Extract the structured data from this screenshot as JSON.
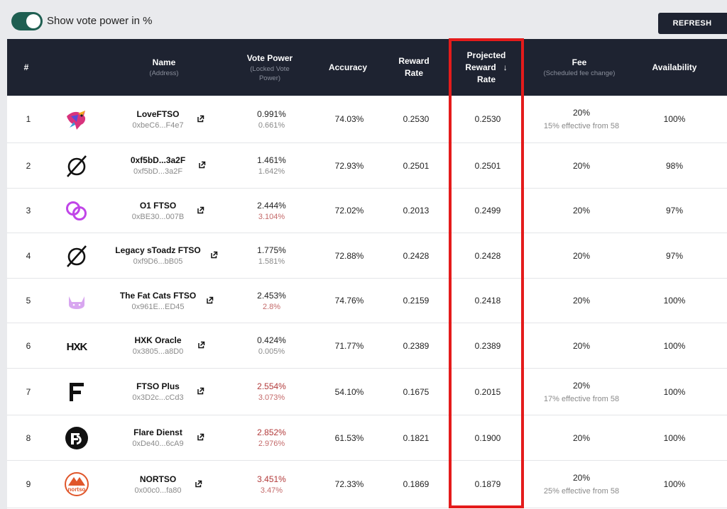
{
  "toolbar": {
    "toggle_label": "Show vote power in %",
    "refresh_label": "REFRESH"
  },
  "header": {
    "num": "#",
    "name": "Name",
    "name_sub": "(Address)",
    "vote_power": "Vote Power",
    "vote_power_sub_1": "(Locked Vote",
    "vote_power_sub_2": "Power)",
    "accuracy": "Accuracy",
    "reward_rate_1": "Reward",
    "reward_rate_2": "Rate",
    "projected_1": "Projected",
    "projected_2": "Reward",
    "projected_3": "Rate",
    "sort_arrow": "↓",
    "fee": "Fee",
    "fee_sub": "(Scheduled fee change)",
    "availability": "Availability"
  },
  "rows": [
    {
      "num": "1",
      "logo": "lovebird-logo",
      "name": "LoveFTSO",
      "address": "0xbeC6...F4e7",
      "vp": "0.991%",
      "vp_locked": "0.661%",
      "vp_red": false,
      "accuracy": "74.03%",
      "reward": "0.2530",
      "projected": "0.2530",
      "fee": "20%",
      "fee_change": "15% effective from 58",
      "availability": "100%"
    },
    {
      "num": "2",
      "logo": "empty-set-logo",
      "name": "0xf5bD...3a2F",
      "address": "0xf5bD...3a2F",
      "vp": "1.461%",
      "vp_locked": "1.642%",
      "vp_red": false,
      "accuracy": "72.93%",
      "reward": "0.2501",
      "projected": "0.2501",
      "fee": "20%",
      "fee_change": "",
      "availability": "98%"
    },
    {
      "num": "3",
      "logo": "o1-rings-logo",
      "name": "O1 FTSO",
      "address": "0xBE30...007B",
      "vp": "2.444%",
      "vp_locked": "3.104%",
      "vp_red": false,
      "vp_locked_red": true,
      "accuracy": "72.02%",
      "reward": "0.2013",
      "projected": "0.2499",
      "fee": "20%",
      "fee_change": "",
      "availability": "97%"
    },
    {
      "num": "4",
      "logo": "empty-set-logo",
      "name": "Legacy sToadz FTSO",
      "address": "0xf9D6...bB05",
      "vp": "1.775%",
      "vp_locked": "1.581%",
      "vp_red": false,
      "accuracy": "72.88%",
      "reward": "0.2428",
      "projected": "0.2428",
      "fee": "20%",
      "fee_change": "",
      "availability": "97%"
    },
    {
      "num": "5",
      "logo": "fat-cat-logo",
      "name": "The Fat Cats FTSO",
      "address": "0x961E...ED45",
      "vp": "2.453%",
      "vp_locked": "2.8%",
      "vp_red": false,
      "vp_locked_red": true,
      "accuracy": "74.76%",
      "reward": "0.2159",
      "projected": "0.2418",
      "fee": "20%",
      "fee_change": "",
      "availability": "100%"
    },
    {
      "num": "6",
      "logo": "hxk-logo",
      "name": "HXK Oracle",
      "address": "0x3805...a8D0",
      "vp": "0.424%",
      "vp_locked": "0.005%",
      "vp_red": false,
      "accuracy": "71.77%",
      "reward": "0.2389",
      "projected": "0.2389",
      "fee": "20%",
      "fee_change": "",
      "availability": "100%"
    },
    {
      "num": "7",
      "logo": "ftso-plus-logo",
      "name": "FTSO Plus",
      "address": "0x3D2c...cCd3",
      "vp": "2.554%",
      "vp_locked": "3.073%",
      "vp_red": true,
      "vp_locked_red": true,
      "accuracy": "54.10%",
      "reward": "0.1675",
      "projected": "0.2015",
      "fee": "20%",
      "fee_change": "17% effective from 58",
      "availability": "100%"
    },
    {
      "num": "8",
      "logo": "flare-dienst-logo",
      "name": "Flare Dienst",
      "address": "0xDe40...6cA9",
      "vp": "2.852%",
      "vp_locked": "2.976%",
      "vp_red": true,
      "vp_locked_red": true,
      "accuracy": "61.53%",
      "reward": "0.1821",
      "projected": "0.1900",
      "fee": "20%",
      "fee_change": "",
      "availability": "100%"
    },
    {
      "num": "9",
      "logo": "nortso-logo",
      "name": "NORTSO",
      "address": "0x00c0...fa80",
      "vp": "3.451%",
      "vp_locked": "3.47%",
      "vp_red": true,
      "vp_locked_red": true,
      "accuracy": "72.33%",
      "reward": "0.1869",
      "projected": "0.1879",
      "fee": "20%",
      "fee_change": "25% effective from 58",
      "availability": "100%"
    }
  ],
  "logo_texts": {
    "hxk": "HXK",
    "nortso": "nortso"
  },
  "colors": {
    "header_bg": "#1e2331",
    "toggle_on": "#1f5f52",
    "highlight": "#e41b1b",
    "vp_warning": "#b23a3a"
  }
}
